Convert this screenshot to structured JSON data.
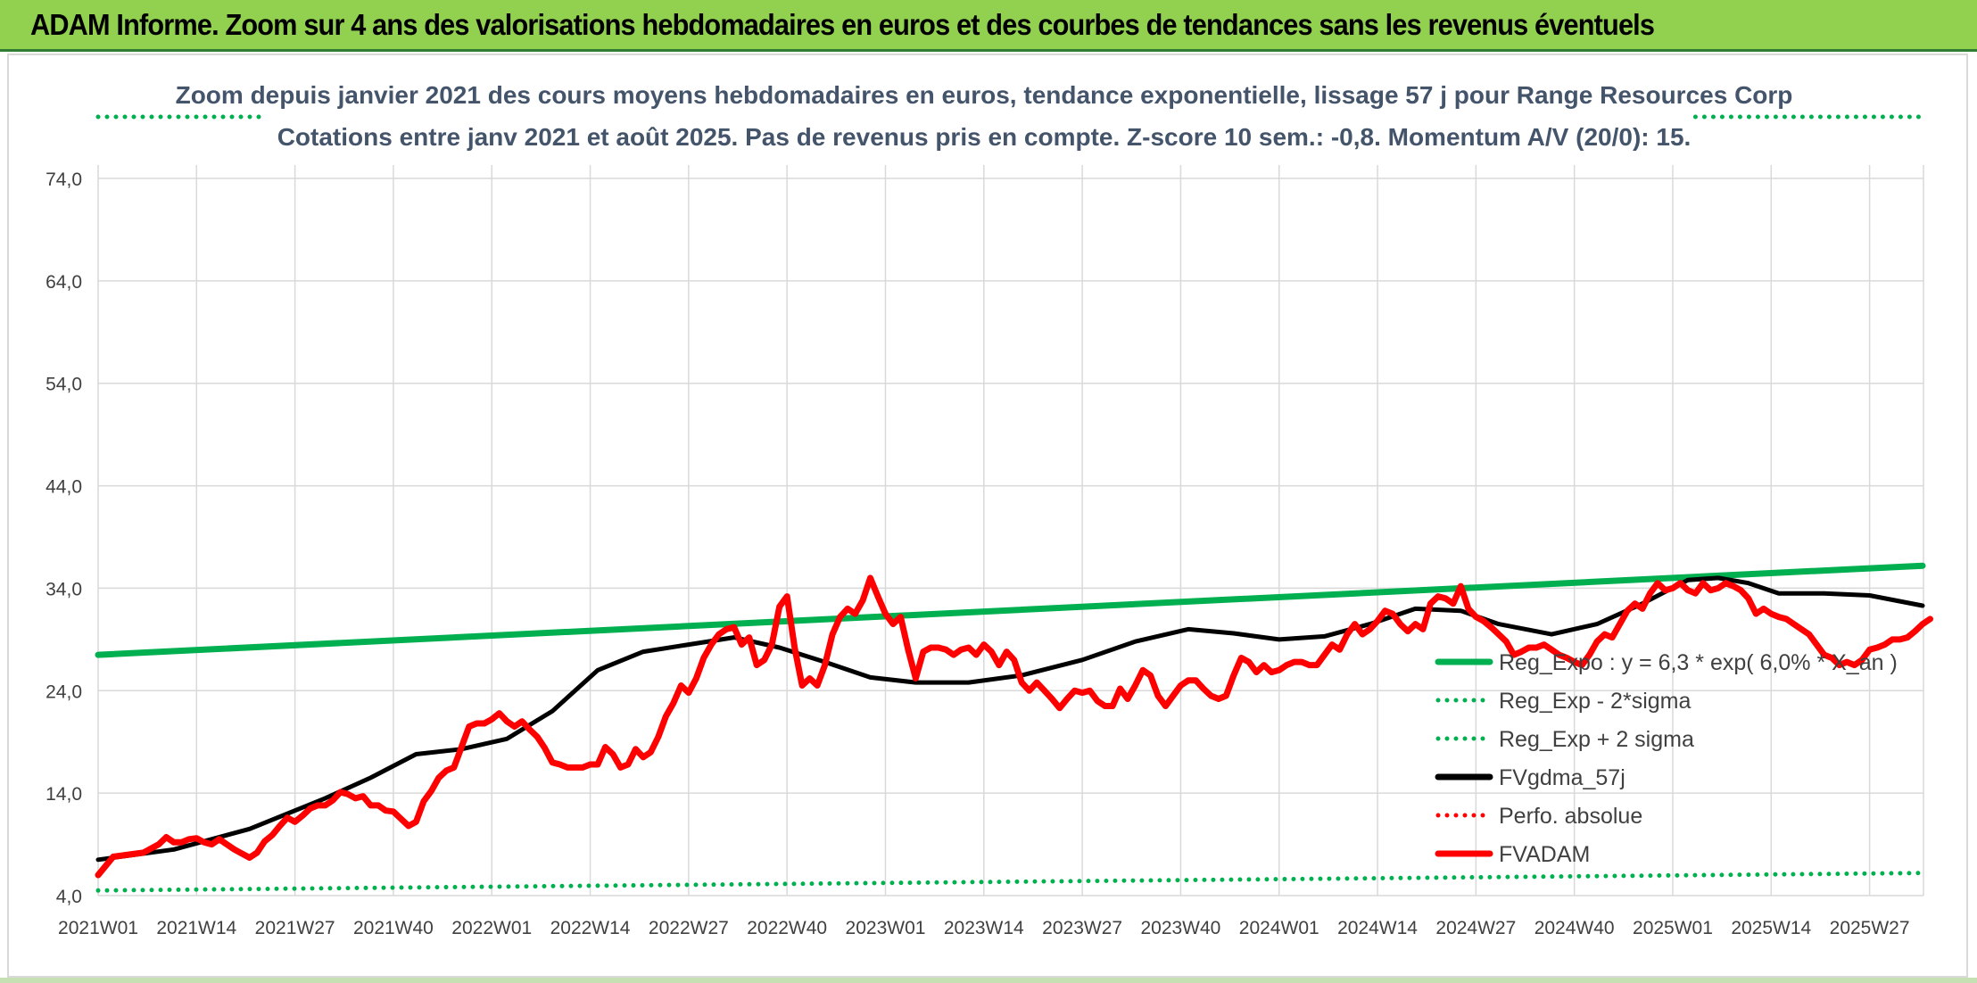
{
  "page_title": "ADAM Informe. Zoom sur 4 ans des valorisations hebdomadaires en euros et des courbes de tendances sans les revenus éventuels",
  "chart_data": {
    "type": "line",
    "subtitle_line1": "Zoom depuis janvier 2021 des cours moyens hebdomadaires en euros, tendance exponentielle, lissage 57 j pour Range Resources Corp",
    "subtitle_line2": "Cotations entre janv 2021 et août 2025. Pas de revenus pris en compte. Z-score 10 sem.: -0,8. Momentum A/V (20/0): 15.",
    "ylim": [
      4,
      74
    ],
    "y_ticks": [
      "74,0",
      "64,0",
      "54,0",
      "44,0",
      "34,0",
      "24,0",
      "14,0",
      "4,0"
    ],
    "x_range": [
      0,
      241
    ],
    "x_ticks": [
      {
        "i": 0,
        "label": "2021W01"
      },
      {
        "i": 13,
        "label": "2021W14"
      },
      {
        "i": 26,
        "label": "2021W27"
      },
      {
        "i": 39,
        "label": "2021W40"
      },
      {
        "i": 52,
        "label": "2022W01"
      },
      {
        "i": 65,
        "label": "2022W14"
      },
      {
        "i": 78,
        "label": "2022W27"
      },
      {
        "i": 91,
        "label": "2022W40"
      },
      {
        "i": 104,
        "label": "2023W01"
      },
      {
        "i": 117,
        "label": "2023W14"
      },
      {
        "i": 130,
        "label": "2023W27"
      },
      {
        "i": 143,
        "label": "2023W40"
      },
      {
        "i": 156,
        "label": "2024W01"
      },
      {
        "i": 169,
        "label": "2024W14"
      },
      {
        "i": 182,
        "label": "2024W27"
      },
      {
        "i": 195,
        "label": "2024W40"
      },
      {
        "i": 208,
        "label": "2025W01"
      },
      {
        "i": 221,
        "label": "2025W14"
      },
      {
        "i": 234,
        "label": "2025W27"
      }
    ],
    "grid": true,
    "legend_position": "right",
    "series": [
      {
        "name": "Reg_Expo : y = 6,3 * exp( 6,0% *  X_an )",
        "color": "#00b050",
        "style": "solid",
        "points": [
          [
            0,
            27.5
          ],
          [
            241,
            36.2
          ]
        ]
      },
      {
        "name": "Reg_Exp - 2*sigma",
        "color": "#00b050",
        "style": "dotted",
        "points": [
          [
            0,
            4.5
          ],
          [
            241,
            6.2
          ]
        ]
      },
      {
        "name": "Reg_Exp + 2 sigma",
        "color": "#00b050",
        "style": "dotted",
        "points": [
          [
            0,
            81.0
          ],
          [
            22,
            81.0
          ],
          [
            211,
            81.0
          ],
          [
            241,
            81.0
          ]
        ]
      },
      {
        "name": "FVgdma_57j",
        "color": "#000000",
        "style": "solid",
        "points": [
          [
            0,
            7.5
          ],
          [
            10,
            8.5
          ],
          [
            20,
            10.5
          ],
          [
            30,
            13.5
          ],
          [
            36,
            15.5
          ],
          [
            42,
            17.8
          ],
          [
            48,
            18.3
          ],
          [
            54,
            19.3
          ],
          [
            60,
            22.0
          ],
          [
            66,
            26.0
          ],
          [
            72,
            27.8
          ],
          [
            78,
            28.5
          ],
          [
            84,
            29.2
          ],
          [
            90,
            28.2
          ],
          [
            96,
            26.8
          ],
          [
            102,
            25.3
          ],
          [
            108,
            24.8
          ],
          [
            115,
            24.8
          ],
          [
            122,
            25.5
          ],
          [
            130,
            27.0
          ],
          [
            137,
            28.8
          ],
          [
            144,
            30.0
          ],
          [
            150,
            29.6
          ],
          [
            156,
            29.0
          ],
          [
            162,
            29.3
          ],
          [
            168,
            30.5
          ],
          [
            174,
            32.0
          ],
          [
            180,
            31.8
          ],
          [
            185,
            30.5
          ],
          [
            192,
            29.5
          ],
          [
            198,
            30.5
          ],
          [
            204,
            32.5
          ],
          [
            210,
            34.8
          ],
          [
            214,
            35.0
          ],
          [
            218,
            34.5
          ],
          [
            222,
            33.5
          ],
          [
            228,
            33.5
          ],
          [
            234,
            33.3
          ],
          [
            241,
            32.3
          ]
        ]
      },
      {
        "name": "Perfo. absolue",
        "color": "#ff0000",
        "style": "dotted",
        "points": []
      },
      {
        "name": "FVADAM",
        "color": "#ff0000",
        "style": "solid",
        "points": [
          [
            0,
            6.0
          ],
          [
            2,
            7.8
          ],
          [
            4,
            8.0
          ],
          [
            6,
            8.2
          ],
          [
            8,
            9.0
          ],
          [
            9,
            9.7
          ],
          [
            10,
            9.2
          ],
          [
            11,
            9.2
          ],
          [
            12,
            9.5
          ],
          [
            13,
            9.6
          ],
          [
            14,
            9.2
          ],
          [
            15,
            9.0
          ],
          [
            16,
            9.5
          ],
          [
            17,
            9.0
          ],
          [
            18,
            8.5
          ],
          [
            19,
            8.1
          ],
          [
            20,
            7.7
          ],
          [
            21,
            8.2
          ],
          [
            22,
            9.3
          ],
          [
            23,
            9.9
          ],
          [
            24,
            10.8
          ],
          [
            25,
            11.6
          ],
          [
            26,
            11.2
          ],
          [
            27,
            11.8
          ],
          [
            28,
            12.5
          ],
          [
            29,
            12.8
          ],
          [
            30,
            12.8
          ],
          [
            31,
            13.3
          ],
          [
            32,
            14.1
          ],
          [
            33,
            13.9
          ],
          [
            34,
            13.5
          ],
          [
            35,
            13.7
          ],
          [
            36,
            12.8
          ],
          [
            37,
            12.8
          ],
          [
            38,
            12.3
          ],
          [
            39,
            12.2
          ],
          [
            40,
            11.5
          ],
          [
            41,
            10.8
          ],
          [
            42,
            11.2
          ],
          [
            43,
            13.2
          ],
          [
            44,
            14.2
          ],
          [
            45,
            15.5
          ],
          [
            46,
            16.2
          ],
          [
            47,
            16.5
          ],
          [
            48,
            18.5
          ],
          [
            49,
            20.5
          ],
          [
            50,
            20.8
          ],
          [
            51,
            20.8
          ],
          [
            52,
            21.2
          ],
          [
            53,
            21.8
          ],
          [
            54,
            21.0
          ],
          [
            55,
            20.5
          ],
          [
            56,
            21.0
          ],
          [
            57,
            20.2
          ],
          [
            58,
            19.5
          ],
          [
            59,
            18.4
          ],
          [
            60,
            17.0
          ],
          [
            61,
            16.8
          ],
          [
            62,
            16.5
          ],
          [
            63,
            16.5
          ],
          [
            64,
            16.5
          ],
          [
            65,
            16.8
          ],
          [
            66,
            16.8
          ],
          [
            67,
            18.5
          ],
          [
            68,
            17.8
          ],
          [
            69,
            16.5
          ],
          [
            70,
            16.8
          ],
          [
            71,
            18.3
          ],
          [
            72,
            17.5
          ],
          [
            73,
            18.0
          ],
          [
            74,
            19.5
          ],
          [
            75,
            21.5
          ],
          [
            76,
            22.8
          ],
          [
            77,
            24.5
          ],
          [
            78,
            23.8
          ],
          [
            79,
            25.2
          ],
          [
            80,
            27.2
          ],
          [
            81,
            28.5
          ],
          [
            82,
            29.5
          ],
          [
            83,
            30.0
          ],
          [
            84,
            30.2
          ],
          [
            85,
            28.5
          ],
          [
            86,
            29.2
          ],
          [
            87,
            26.5
          ],
          [
            88,
            27.0
          ],
          [
            89,
            28.5
          ],
          [
            90,
            32.2
          ],
          [
            91,
            33.2
          ],
          [
            92,
            28.2
          ],
          [
            93,
            24.5
          ],
          [
            94,
            25.2
          ],
          [
            95,
            24.5
          ],
          [
            96,
            26.5
          ],
          [
            97,
            29.5
          ],
          [
            98,
            31.2
          ],
          [
            99,
            32.0
          ],
          [
            100,
            31.5
          ],
          [
            101,
            32.8
          ],
          [
            102,
            35.0
          ],
          [
            103,
            33.2
          ],
          [
            104,
            31.5
          ],
          [
            105,
            30.5
          ],
          [
            106,
            31.2
          ],
          [
            107,
            28.0
          ],
          [
            108,
            25.2
          ],
          [
            109,
            27.8
          ],
          [
            110,
            28.2
          ],
          [
            111,
            28.2
          ],
          [
            112,
            28.0
          ],
          [
            113,
            27.5
          ],
          [
            114,
            28.0
          ],
          [
            115,
            28.2
          ],
          [
            116,
            27.5
          ],
          [
            117,
            28.5
          ],
          [
            118,
            27.8
          ],
          [
            119,
            26.5
          ],
          [
            120,
            27.8
          ],
          [
            121,
            27.0
          ],
          [
            122,
            24.8
          ],
          [
            123,
            24.0
          ],
          [
            124,
            24.8
          ],
          [
            125,
            24.0
          ],
          [
            126,
            23.2
          ],
          [
            127,
            22.3
          ],
          [
            128,
            23.2
          ],
          [
            129,
            24.0
          ],
          [
            130,
            23.8
          ],
          [
            131,
            24.0
          ],
          [
            132,
            23.0
          ],
          [
            133,
            22.5
          ],
          [
            134,
            22.5
          ],
          [
            135,
            24.2
          ],
          [
            136,
            23.2
          ],
          [
            137,
            24.5
          ],
          [
            138,
            26.0
          ],
          [
            139,
            25.5
          ],
          [
            140,
            23.5
          ],
          [
            141,
            22.5
          ],
          [
            142,
            23.5
          ],
          [
            143,
            24.5
          ],
          [
            144,
            25.0
          ],
          [
            145,
            25.0
          ],
          [
            146,
            24.2
          ],
          [
            147,
            23.5
          ],
          [
            148,
            23.2
          ],
          [
            149,
            23.5
          ],
          [
            150,
            25.5
          ],
          [
            151,
            27.2
          ],
          [
            152,
            26.8
          ],
          [
            153,
            25.8
          ],
          [
            154,
            26.5
          ],
          [
            155,
            25.8
          ],
          [
            156,
            26.0
          ],
          [
            157,
            26.5
          ],
          [
            158,
            26.8
          ],
          [
            159,
            26.8
          ],
          [
            160,
            26.5
          ],
          [
            161,
            26.5
          ],
          [
            162,
            27.5
          ],
          [
            163,
            28.5
          ],
          [
            164,
            28.0
          ],
          [
            165,
            29.5
          ],
          [
            166,
            30.5
          ],
          [
            167,
            29.5
          ],
          [
            168,
            30.0
          ],
          [
            169,
            30.8
          ],
          [
            170,
            31.8
          ],
          [
            171,
            31.5
          ],
          [
            172,
            30.5
          ],
          [
            173,
            29.8
          ],
          [
            174,
            30.5
          ],
          [
            175,
            30.0
          ],
          [
            176,
            32.5
          ],
          [
            177,
            33.2
          ],
          [
            178,
            33.0
          ],
          [
            179,
            32.5
          ],
          [
            180,
            34.2
          ],
          [
            181,
            32.0
          ],
          [
            182,
            31.2
          ],
          [
            183,
            30.8
          ],
          [
            184,
            30.2
          ],
          [
            185,
            29.5
          ],
          [
            186,
            28.8
          ],
          [
            187,
            27.5
          ],
          [
            188,
            27.8
          ],
          [
            189,
            28.2
          ],
          [
            190,
            28.2
          ],
          [
            191,
            28.5
          ],
          [
            192,
            28.0
          ],
          [
            193,
            27.5
          ],
          [
            194,
            27.2
          ],
          [
            195,
            26.8
          ],
          [
            196,
            26.5
          ],
          [
            197,
            27.5
          ],
          [
            198,
            28.8
          ],
          [
            199,
            29.5
          ],
          [
            200,
            29.2
          ],
          [
            201,
            30.5
          ],
          [
            202,
            31.8
          ],
          [
            203,
            32.5
          ],
          [
            204,
            32.0
          ],
          [
            205,
            33.5
          ],
          [
            206,
            34.5
          ],
          [
            207,
            33.8
          ],
          [
            208,
            34.0
          ],
          [
            209,
            34.5
          ],
          [
            210,
            33.8
          ],
          [
            211,
            33.5
          ],
          [
            212,
            34.5
          ],
          [
            213,
            33.8
          ],
          [
            214,
            34.0
          ],
          [
            215,
            34.5
          ],
          [
            216,
            34.2
          ],
          [
            217,
            33.8
          ],
          [
            218,
            33.0
          ],
          [
            219,
            31.5
          ],
          [
            220,
            32.0
          ],
          [
            221,
            31.5
          ],
          [
            222,
            31.2
          ],
          [
            223,
            31.0
          ],
          [
            224,
            30.5
          ],
          [
            225,
            30.0
          ],
          [
            226,
            29.5
          ],
          [
            227,
            28.5
          ],
          [
            228,
            27.5
          ],
          [
            229,
            27.2
          ],
          [
            230,
            26.5
          ],
          [
            231,
            26.8
          ],
          [
            232,
            26.5
          ],
          [
            233,
            27.0
          ],
          [
            234,
            28.0
          ],
          [
            235,
            28.2
          ],
          [
            236,
            28.5
          ],
          [
            237,
            29.0
          ],
          [
            238,
            29.0
          ],
          [
            239,
            29.2
          ],
          [
            240,
            29.8
          ],
          [
            241,
            30.5
          ],
          [
            242,
            31.0
          ]
        ]
      }
    ]
  }
}
